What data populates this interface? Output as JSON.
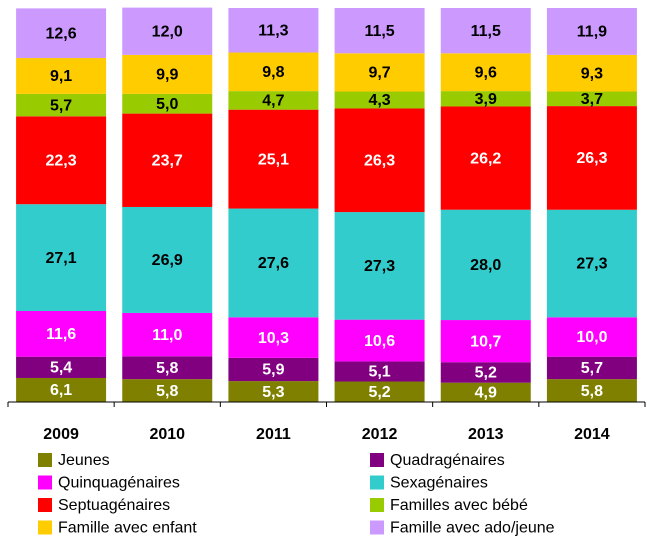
{
  "chart_data": {
    "type": "stacked-bar",
    "categories": [
      "2009",
      "2010",
      "2011",
      "2012",
      "2013",
      "2014"
    ],
    "ylim": [
      0,
      100
    ],
    "series": [
      {
        "name": "Jeunes",
        "color": "#808000",
        "label_color": "#ffffff",
        "values": [
          6.1,
          5.8,
          5.3,
          5.2,
          4.9,
          5.8
        ],
        "value_labels": [
          "6,1",
          "5,8",
          "5,3",
          "5,2",
          "4,9",
          "5,8"
        ]
      },
      {
        "name": "Quadragénaires",
        "color": "#800080",
        "label_color": "#ffffff",
        "values": [
          5.4,
          5.8,
          5.9,
          5.1,
          5.2,
          5.7
        ],
        "value_labels": [
          "5,4",
          "5,8",
          "5,9",
          "5,1",
          "5,2",
          "5,7"
        ]
      },
      {
        "name": "Quinquagénaires",
        "color": "#ff00ff",
        "label_color": "#ffffff",
        "values": [
          11.6,
          11.0,
          10.3,
          10.6,
          10.7,
          10.0
        ],
        "value_labels": [
          "11,6",
          "11,0",
          "10,3",
          "10,6",
          "10,7",
          "10,0"
        ]
      },
      {
        "name": "Sexagénaires",
        "color": "#33cccc",
        "label_color": "#000000",
        "values": [
          27.1,
          26.9,
          27.6,
          27.3,
          28.0,
          27.3
        ],
        "value_labels": [
          "27,1",
          "26,9",
          "27,6",
          "27,3",
          "28,0",
          "27,3"
        ]
      },
      {
        "name": "Septuagénaires",
        "color": "#ff0000",
        "label_color": "#ffffff",
        "values": [
          22.3,
          23.7,
          25.1,
          26.3,
          26.2,
          26.3
        ],
        "value_labels": [
          "22,3",
          "23,7",
          "25,1",
          "26,3",
          "26,2",
          "26,3"
        ]
      },
      {
        "name": "Familles avec bébé",
        "color": "#99cc00",
        "label_color": "#000000",
        "values": [
          5.7,
          5.0,
          4.7,
          4.3,
          3.9,
          3.7
        ],
        "value_labels": [
          "5,7",
          "5,0",
          "4,7",
          "4,3",
          "3,9",
          "3,7"
        ]
      },
      {
        "name": "Famille avec enfant",
        "color": "#ffcc00",
        "label_color": "#000000",
        "values": [
          9.1,
          9.9,
          9.8,
          9.7,
          9.6,
          9.3
        ],
        "value_labels": [
          "9,1",
          "9,9",
          "9,8",
          "9,7",
          "9,6",
          "9,3"
        ]
      },
      {
        "name": "Famille avec ado/jeune",
        "color": "#cc99ff",
        "label_color": "#000000",
        "values": [
          12.6,
          12.0,
          11.3,
          11.5,
          11.5,
          11.9
        ],
        "value_labels": [
          "12,6",
          "12,0",
          "11,3",
          "11,5",
          "11,5",
          "11,9"
        ]
      }
    ]
  }
}
